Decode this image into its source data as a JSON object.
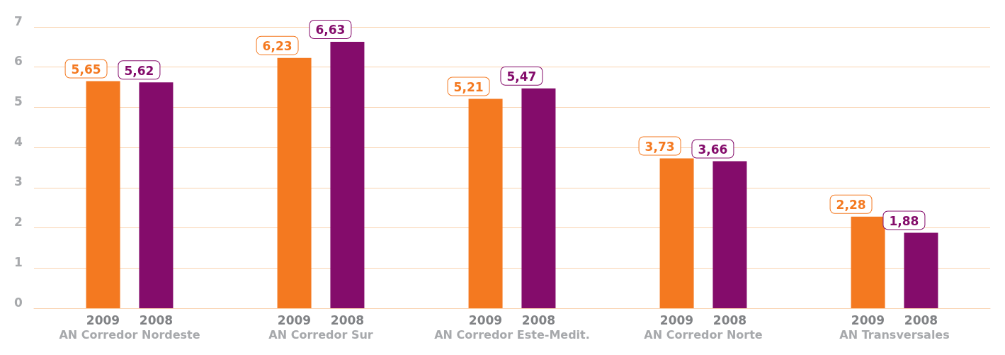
{
  "chart_data": {
    "type": "bar",
    "categories": [
      "AN Corredor Nordeste",
      "AN Corredor Sur",
      "AN Corredor Este-Medit.",
      "AN Corredor Norte",
      "AN Transversales"
    ],
    "series": [
      {
        "name": "2009",
        "color": "#f47920",
        "values": [
          5.65,
          6.23,
          5.21,
          3.73,
          2.28
        ],
        "value_labels": [
          "5,65",
          "6,23",
          "5,21",
          "3,73",
          "2,28"
        ]
      },
      {
        "name": "2008",
        "color": "#840c6b",
        "values": [
          5.62,
          6.63,
          5.47,
          3.66,
          1.88
        ],
        "value_labels": [
          "5,62",
          "6,63",
          "5,47",
          "3,66",
          "1,88"
        ]
      }
    ],
    "ylim": [
      0,
      7
    ],
    "yticks": [
      0,
      1,
      2,
      3,
      4,
      5,
      6,
      7
    ],
    "grid": "y",
    "legend": false
  }
}
